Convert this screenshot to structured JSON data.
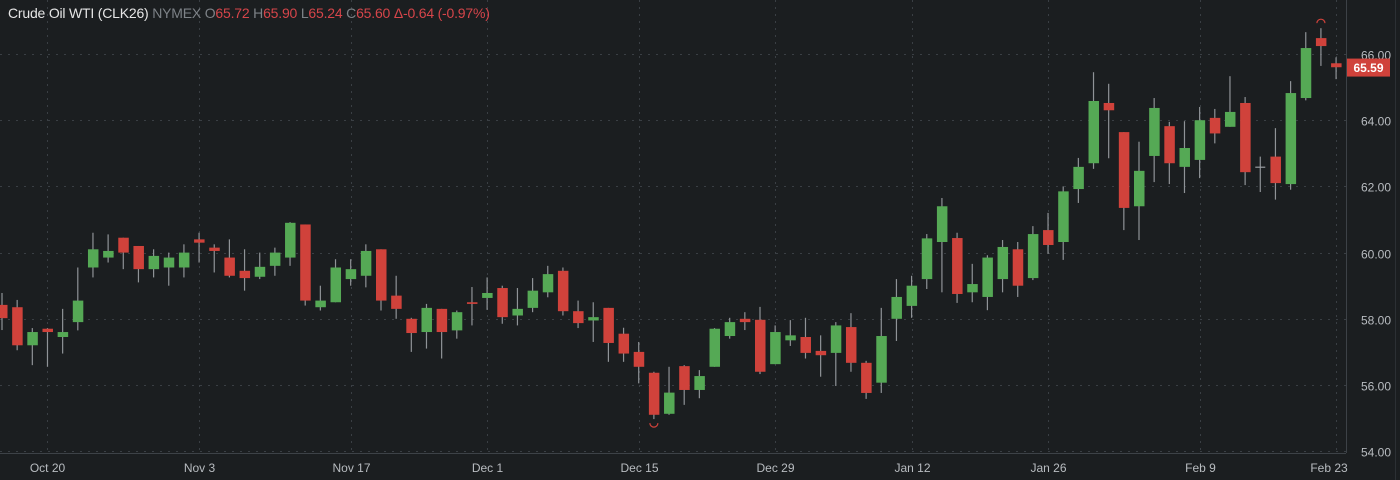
{
  "header": {
    "symbol": "Crude Oil WTI (CLK26)",
    "exchange": "NYMEX",
    "open_label": "O",
    "open": "65.72",
    "high_label": "H",
    "high": "65.90",
    "low_label": "L",
    "low": "65.24",
    "close_label": "C",
    "close": "65.60",
    "change": "Δ-0.64 (-0.97%)"
  },
  "colors": {
    "background": "#1b1e20",
    "up": "#55a955",
    "down": "#d0423b",
    "grid": "#3a3f44",
    "text": "#b8bcc0",
    "price_tag": "#d0423b"
  },
  "chart_data": {
    "type": "candlestick",
    "ylim": [
      54,
      66
    ],
    "y_ticks": [
      "54.00",
      "56.00",
      "58.00",
      "60.00",
      "62.00",
      "64.00",
      "66.00"
    ],
    "y_tick_values": [
      54,
      56,
      58,
      60,
      62,
      64,
      66
    ],
    "x_ticks": [
      {
        "label": "Oct 20",
        "index": 3
      },
      {
        "label": "Nov 3",
        "index": 13
      },
      {
        "label": "Nov 17",
        "index": 23
      },
      {
        "label": "Dec 1",
        "index": 32
      },
      {
        "label": "Dec 15",
        "index": 42
      },
      {
        "label": "Dec 29",
        "index": 51
      },
      {
        "label": "Jan 12",
        "index": 60
      },
      {
        "label": "Jan 26",
        "index": 69
      },
      {
        "label": "Feb 9",
        "index": 79
      },
      {
        "label": "Feb 23",
        "index": 88
      }
    ],
    "grid": true,
    "last_price": "65.59",
    "last_price_value": 65.59,
    "candles_ohlc": [
      [
        58.42,
        58.78,
        57.66,
        58.02
      ],
      [
        58.35,
        58.57,
        57.05,
        57.2
      ],
      [
        57.2,
        57.72,
        56.6,
        57.6
      ],
      [
        57.7,
        57.72,
        56.55,
        57.6
      ],
      [
        57.45,
        58.3,
        56.95,
        57.6
      ],
      [
        57.9,
        59.55,
        57.65,
        58.55
      ],
      [
        59.55,
        60.6,
        59.25,
        60.1
      ],
      [
        59.85,
        60.55,
        59.7,
        60.05
      ],
      [
        60.45,
        60.45,
        59.5,
        60.0
      ],
      [
        60.2,
        60.2,
        59.1,
        59.5
      ],
      [
        59.5,
        60.1,
        59.25,
        59.9
      ],
      [
        59.55,
        60.0,
        59.0,
        59.85
      ],
      [
        59.55,
        60.25,
        59.25,
        60.0
      ],
      [
        60.4,
        60.6,
        59.7,
        60.3
      ],
      [
        60.15,
        60.25,
        59.4,
        60.05
      ],
      [
        59.85,
        60.4,
        59.25,
        59.3
      ],
      [
        59.45,
        60.1,
        58.85,
        59.23
      ],
      [
        59.27,
        60.0,
        59.2,
        59.57
      ],
      [
        59.6,
        60.15,
        59.3,
        60.0
      ],
      [
        59.85,
        60.92,
        59.6,
        60.9
      ],
      [
        60.85,
        60.85,
        58.4,
        58.55
      ],
      [
        58.35,
        59.0,
        58.25,
        58.55
      ],
      [
        58.5,
        59.8,
        58.5,
        59.55
      ],
      [
        59.2,
        59.8,
        59.0,
        59.5
      ],
      [
        59.3,
        60.25,
        58.95,
        60.05
      ],
      [
        60.1,
        60.1,
        58.25,
        58.55
      ],
      [
        58.7,
        59.3,
        58.0,
        58.3
      ],
      [
        58.0,
        58.03,
        57.0,
        57.57
      ],
      [
        57.6,
        58.45,
        57.1,
        58.33
      ],
      [
        58.3,
        58.3,
        56.8,
        57.6
      ],
      [
        57.65,
        58.25,
        57.4,
        58.2
      ],
      [
        58.5,
        58.96,
        57.8,
        58.45
      ],
      [
        58.63,
        59.25,
        58.27,
        58.78
      ],
      [
        58.93,
        59.0,
        57.85,
        58.05
      ],
      [
        58.1,
        58.93,
        57.8,
        58.3
      ],
      [
        58.33,
        59.23,
        58.2,
        58.85
      ],
      [
        58.8,
        59.6,
        58.65,
        59.35
      ],
      [
        59.45,
        59.55,
        58.1,
        58.23
      ],
      [
        58.23,
        58.55,
        57.72,
        57.87
      ],
      [
        57.95,
        58.5,
        57.3,
        58.05
      ],
      [
        58.33,
        58.33,
        56.7,
        57.27
      ],
      [
        57.55,
        57.73,
        56.7,
        56.95
      ],
      [
        57.0,
        57.3,
        56.05,
        56.55
      ],
      [
        56.37,
        56.4,
        54.97,
        55.1
      ],
      [
        55.13,
        56.55,
        55.1,
        55.77
      ],
      [
        56.57,
        56.6,
        55.4,
        55.85
      ],
      [
        55.85,
        56.45,
        55.6,
        56.27
      ],
      [
        56.55,
        57.72,
        56.55,
        57.7
      ],
      [
        57.48,
        58.03,
        57.4,
        57.9
      ],
      [
        58.0,
        58.2,
        57.66,
        57.9
      ],
      [
        57.97,
        58.36,
        56.33,
        56.4
      ],
      [
        56.63,
        57.8,
        56.63,
        57.6
      ],
      [
        57.35,
        57.96,
        57.18,
        57.5
      ],
      [
        57.45,
        58.03,
        56.8,
        56.97
      ],
      [
        57.03,
        57.5,
        56.25,
        56.9
      ],
      [
        56.97,
        57.9,
        55.97,
        57.8
      ],
      [
        57.75,
        58.17,
        56.4,
        56.67
      ],
      [
        56.67,
        56.73,
        55.58,
        55.76
      ],
      [
        56.07,
        58.33,
        55.76,
        57.48
      ],
      [
        58.0,
        59.2,
        57.33,
        58.66
      ],
      [
        58.39,
        59.3,
        58.03,
        59.0
      ],
      [
        59.2,
        60.56,
        58.9,
        60.43
      ],
      [
        60.32,
        61.65,
        58.8,
        61.4
      ],
      [
        60.44,
        60.6,
        58.48,
        58.75
      ],
      [
        58.8,
        59.66,
        58.5,
        59.05
      ],
      [
        58.66,
        59.92,
        58.26,
        59.85
      ],
      [
        59.2,
        60.38,
        58.8,
        60.17
      ],
      [
        60.1,
        60.32,
        58.66,
        59.0
      ],
      [
        59.23,
        60.8,
        59.17,
        60.56
      ],
      [
        60.68,
        61.2,
        59.96,
        60.23
      ],
      [
        60.32,
        62.0,
        59.78,
        61.85
      ],
      [
        61.92,
        62.86,
        61.5,
        62.59
      ],
      [
        62.7,
        65.45,
        62.53,
        64.58
      ],
      [
        64.52,
        65.1,
        62.85,
        64.3
      ],
      [
        63.64,
        63.64,
        60.68,
        61.35
      ],
      [
        61.4,
        63.35,
        60.38,
        62.47
      ],
      [
        62.92,
        64.67,
        62.13,
        64.37
      ],
      [
        63.82,
        63.95,
        62.07,
        62.7
      ],
      [
        62.59,
        63.97,
        61.8,
        63.16
      ],
      [
        62.8,
        64.4,
        62.25,
        64.0
      ],
      [
        64.07,
        64.34,
        63.3,
        63.6
      ],
      [
        63.8,
        65.33,
        63.8,
        64.25
      ],
      [
        64.52,
        64.7,
        62.04,
        62.43
      ],
      [
        62.58,
        62.9,
        61.83,
        62.58
      ],
      [
        62.9,
        63.76,
        61.6,
        62.1
      ],
      [
        62.07,
        65.18,
        61.9,
        64.82
      ],
      [
        64.67,
        66.66,
        64.6,
        66.18
      ],
      [
        66.48,
        66.78,
        65.64,
        66.24
      ],
      [
        65.72,
        65.9,
        65.24,
        65.6
      ]
    ]
  }
}
